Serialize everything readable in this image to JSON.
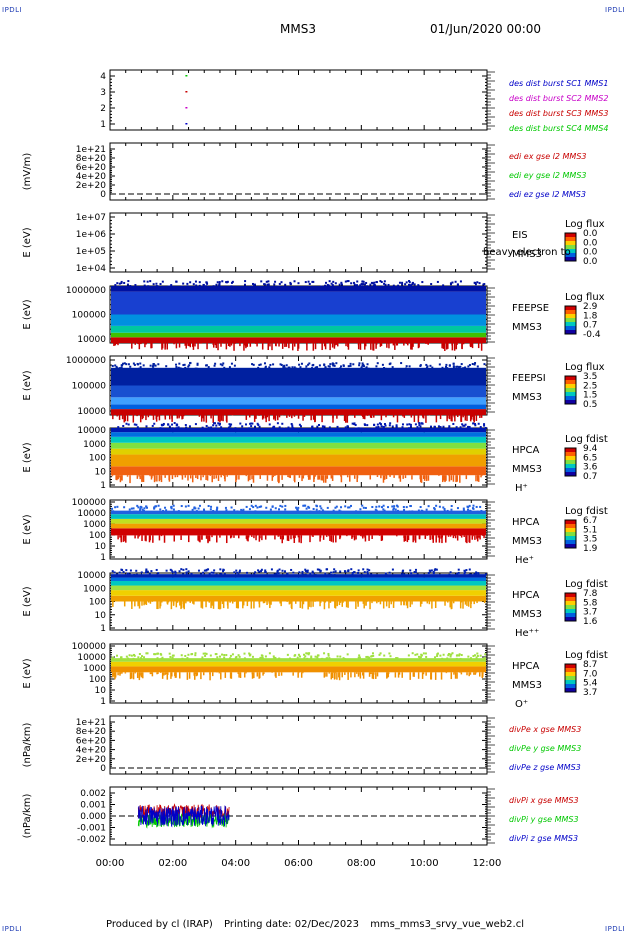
{
  "header": {
    "corner_label": "IPDLI",
    "spacecraft": "MMS3",
    "datetime": "01/Jun/2020 00:00"
  },
  "footer": {
    "produced_by": "Produced by cl (IRAP)",
    "printing_date": "Printing date: 02/Dec/2023",
    "filename": "mms_mms3_srvy_vue_web2.cl"
  },
  "colors": {
    "axis": "#000000",
    "sc1": "#0000c8",
    "sc2": "#c800c8",
    "sc3": "#c80000",
    "sc4": "#00c800",
    "x_comp": "#c80000",
    "y_comp": "#00c800",
    "z_comp": "#0000c8"
  },
  "chart_data": [
    {
      "type": "scatter",
      "id": "des_dist_burst",
      "ylabel": "",
      "yticks": [
        "1",
        "2",
        "3",
        "4"
      ],
      "ylim": [
        0.5,
        4.5
      ],
      "legend": [
        {
          "text": "des dist burst SC1 MMS1",
          "color": "#0000c8"
        },
        {
          "text": "des dist burst SC2 MMS2",
          "color": "#c800c8"
        },
        {
          "text": "des dist burst SC3 MMS3",
          "color": "#c80000"
        },
        {
          "text": "des dist burst SC4 MMS4",
          "color": "#00c800"
        }
      ],
      "series": [
        {
          "sc": 1,
          "x_hours": [
            2.4
          ],
          "y": [
            1
          ],
          "color": "#0000c8"
        },
        {
          "sc": 2,
          "x_hours": [
            2.4
          ],
          "y": [
            2
          ],
          "color": "#c800c8"
        },
        {
          "sc": 3,
          "x_hours": [
            2.4
          ],
          "y": [
            3
          ],
          "color": "#c80000"
        },
        {
          "sc": 4,
          "x_hours": [
            2.4
          ],
          "y": [
            4
          ],
          "color": "#00c800"
        }
      ]
    },
    {
      "type": "line",
      "id": "edi_e_gse",
      "ylabel": "(mV/m)",
      "yticks": [
        "0",
        "2e+20",
        "4e+20",
        "6e+20",
        "8e+20",
        "1e+21"
      ],
      "ylim": [
        0,
        1e+21
      ],
      "legend": [
        {
          "text": "edi ex gse l2 MMS3",
          "color": "#c80000"
        },
        {
          "text": "edi ey gse l2 MMS3",
          "color": "#00c800"
        },
        {
          "text": "edi ez gse l2 MMS3",
          "color": "#0000c8"
        }
      ],
      "zero_line": true
    },
    {
      "type": "heatmap",
      "id": "eis",
      "ylabel": "E (eV)",
      "yticks": [
        "1e+04",
        "1e+05",
        "1e+06",
        "1e+07"
      ],
      "instrument": "EIS",
      "spacecraft": "MMS3",
      "overlay_text": "heavy electron to",
      "colorbar_title": "Log flux",
      "colorbar_ticks": [
        "0.0",
        "0.0",
        "0.0",
        "0.0"
      ],
      "data_present": false
    },
    {
      "type": "heatmap",
      "id": "feepse",
      "ylabel": "E (eV)",
      "yticks": [
        "10000",
        "100000",
        "1000000"
      ],
      "instrument": "FEEPSE",
      "spacecraft": "MMS3",
      "colorbar_title": "Log flux",
      "colorbar_ticks": [
        "2.9",
        "1.8",
        "0.7",
        "-0.4"
      ],
      "x_range_hours": [
        0,
        12
      ],
      "bands": [
        {
          "from": 0.0,
          "to": 0.1,
          "color": "#c80000"
        },
        {
          "from": 0.1,
          "to": 0.18,
          "color": "#40c000"
        },
        {
          "from": 0.18,
          "to": 0.3,
          "color": "#00c8a0"
        },
        {
          "from": 0.3,
          "to": 0.5,
          "color": "#0090e0"
        },
        {
          "from": 0.5,
          "to": 0.9,
          "color": "#1840d0"
        },
        {
          "from": 0.9,
          "to": 1.0,
          "color": "#0010a0"
        }
      ]
    },
    {
      "type": "heatmap",
      "id": "feepsi",
      "ylabel": "E (eV)",
      "yticks": [
        "10000",
        "100000",
        "1000000"
      ],
      "instrument": "FEEPSI",
      "spacecraft": "MMS3",
      "colorbar_title": "Log flux",
      "colorbar_ticks": [
        "3.5",
        "2.5",
        "1.5",
        "0.5"
      ],
      "x_range_hours": [
        0,
        12
      ],
      "bands": [
        {
          "from": 0.0,
          "to": 0.1,
          "color": "#c80000"
        },
        {
          "from": 0.1,
          "to": 0.18,
          "color": "#0060e0"
        },
        {
          "from": 0.18,
          "to": 0.3,
          "color": "#40a0ff"
        },
        {
          "from": 0.3,
          "to": 0.5,
          "color": "#1850d0"
        },
        {
          "from": 0.5,
          "to": 0.8,
          "color": "#0020a0"
        }
      ]
    },
    {
      "type": "heatmap",
      "id": "hpca_h",
      "ylabel": "E (eV)",
      "yticks": [
        "1",
        "10",
        "100",
        "1000",
        "10000"
      ],
      "instrument": "HPCA",
      "spacecraft": "MMS3",
      "species": "H⁺",
      "colorbar_title": "Log fdist",
      "colorbar_ticks": [
        "9.4",
        "6.5",
        "3.6",
        "0.7"
      ],
      "x_range_hours": [
        0,
        12
      ],
      "bands": [
        {
          "from": 0.2,
          "to": 0.35,
          "color": "#f06010"
        },
        {
          "from": 0.35,
          "to": 0.55,
          "color": "#f0a000"
        },
        {
          "from": 0.55,
          "to": 0.65,
          "color": "#e0d000"
        },
        {
          "from": 0.65,
          "to": 0.75,
          "color": "#80e040"
        },
        {
          "from": 0.75,
          "to": 0.85,
          "color": "#00c8c0"
        },
        {
          "from": 0.85,
          "to": 0.93,
          "color": "#0070e0"
        },
        {
          "from": 0.93,
          "to": 1.0,
          "color": "#0018b0"
        }
      ]
    },
    {
      "type": "heatmap",
      "id": "hpca_he",
      "ylabel": "E (eV)",
      "yticks": [
        "1",
        "10",
        "100",
        "1000",
        "10000",
        "100000"
      ],
      "instrument": "HPCA",
      "spacecraft": "MMS3",
      "species": "He⁺",
      "colorbar_title": "Log fdist",
      "colorbar_ticks": [
        "6.7",
        "5.1",
        "3.5",
        "1.9"
      ],
      "x_range_hours": [
        0,
        12
      ],
      "bands": [
        {
          "from": 0.4,
          "to": 0.52,
          "color": "#d00000"
        },
        {
          "from": 0.52,
          "to": 0.6,
          "color": "#f0a000"
        },
        {
          "from": 0.6,
          "to": 0.68,
          "color": "#c0e020"
        },
        {
          "from": 0.68,
          "to": 0.76,
          "color": "#00c0c0"
        },
        {
          "from": 0.76,
          "to": 0.82,
          "color": "#2060e0"
        }
      ]
    },
    {
      "type": "heatmap",
      "id": "hpca_he2",
      "ylabel": "E (eV)",
      "yticks": [
        "1",
        "10",
        "100",
        "1000",
        "10000"
      ],
      "instrument": "HPCA",
      "spacecraft": "MMS3",
      "species": "He⁺⁺",
      "colorbar_title": "Log fdist",
      "colorbar_ticks": [
        "7.8",
        "5.8",
        "3.7",
        "1.6"
      ],
      "x_range_hours": [
        0,
        12
      ],
      "bands": [
        {
          "from": 0.5,
          "to": 0.6,
          "color": "#f0a000"
        },
        {
          "from": 0.6,
          "to": 0.7,
          "color": "#f0d000"
        },
        {
          "from": 0.7,
          "to": 0.78,
          "color": "#a0e040"
        },
        {
          "from": 0.78,
          "to": 0.86,
          "color": "#00c8c0"
        },
        {
          "from": 0.86,
          "to": 0.92,
          "color": "#0070e0"
        },
        {
          "from": 0.92,
          "to": 0.98,
          "color": "#0020b0"
        }
      ]
    },
    {
      "type": "heatmap",
      "id": "hpca_o",
      "ylabel": "E (eV)",
      "yticks": [
        "1",
        "10",
        "100",
        "1000",
        "10000",
        "100000"
      ],
      "instrument": "HPCA",
      "spacecraft": "MMS3",
      "species": "O⁺",
      "colorbar_title": "Log fdist",
      "colorbar_ticks": [
        "8.7",
        "7.0",
        "5.4",
        "3.7"
      ],
      "x_range_hours": [
        0,
        12
      ],
      "bands": [
        {
          "from": 0.52,
          "to": 0.62,
          "color": "#f09000"
        },
        {
          "from": 0.62,
          "to": 0.7,
          "color": "#f0d000"
        },
        {
          "from": 0.7,
          "to": 0.76,
          "color": "#a0e040"
        }
      ]
    },
    {
      "type": "line",
      "id": "divpe",
      "ylabel": "(nPa/km)",
      "yticks": [
        "0",
        "2e+20",
        "4e+20",
        "6e+20",
        "8e+20",
        "1e+21"
      ],
      "ylim": [
        0,
        1e+21
      ],
      "legend": [
        {
          "text": "divPe x gse MMS3",
          "color": "#c80000"
        },
        {
          "text": "divPe y gse MMS3",
          "color": "#00c800"
        },
        {
          "text": "divPe z gse MMS3",
          "color": "#0000c8"
        }
      ],
      "zero_line": true
    },
    {
      "type": "line",
      "id": "divpi",
      "ylabel": "(nPa/km)",
      "yticks": [
        "-0.002",
        "-0.001",
        "0.000",
        "0.001",
        "0.002"
      ],
      "ylim": [
        -0.0025,
        0.0025
      ],
      "legend": [
        {
          "text": "divPi x gse MMS3",
          "color": "#c80000"
        },
        {
          "text": "divPi y gse MMS3",
          "color": "#00c800"
        },
        {
          "text": "divPi z gse MMS3",
          "color": "#0000c8"
        }
      ],
      "zero_line": true,
      "data_x_range_hours": [
        0.9,
        3.8
      ],
      "series_amplitude": [
        {
          "name": "x",
          "color": "#c80000",
          "offset": 0.0004,
          "amp": 0.0006
        },
        {
          "name": "y",
          "color": "#00c800",
          "offset": -0.0004,
          "amp": 0.0006
        },
        {
          "name": "z",
          "color": "#0000c8",
          "offset": 0.0,
          "amp": 0.0009
        }
      ]
    }
  ],
  "xaxis": {
    "ticks": [
      "00:00",
      "02:00",
      "04:00",
      "06:00",
      "08:00",
      "10:00",
      "12:00"
    ],
    "range_hours": [
      0,
      12
    ]
  }
}
